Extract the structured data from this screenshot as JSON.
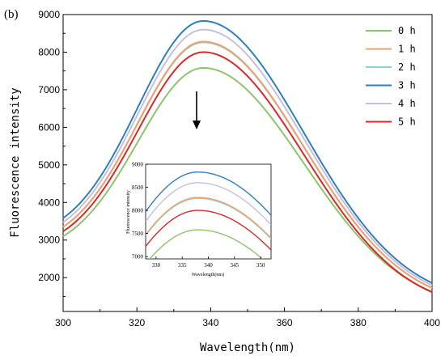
{
  "panel_label": "(b)",
  "colors": {
    "0 h": "#8cc46b",
    "1 h": "#f0a070",
    "2 h": "#8ed4c6",
    "3 h": "#2f7fc0",
    "4 h": "#c6c0e0",
    "5 h": "#d42a2a"
  },
  "chart_data": {
    "type": "line",
    "title": "",
    "xlabel": "Wavelength(nm)",
    "ylabel": "Fluorescence intensity",
    "xlim": [
      300,
      400
    ],
    "ylim": [
      1100,
      9000
    ],
    "xticks": [
      300,
      320,
      340,
      360,
      380,
      400
    ],
    "yticks": [
      2000,
      3000,
      4000,
      5000,
      6000,
      7000,
      8000,
      9000
    ],
    "legend_position": "top-right",
    "peak_wavelength": 338,
    "series": [
      {
        "name": "0 h",
        "start": 2600,
        "peak": 7580,
        "end": 1150
      },
      {
        "name": "1 h",
        "start": 2800,
        "peak": 8280,
        "end": 1200
      },
      {
        "name": "2 h",
        "start": 2800,
        "peak": 8260,
        "end": 1200
      },
      {
        "name": "3 h",
        "start": 3000,
        "peak": 8830,
        "end": 1300
      },
      {
        "name": "4 h",
        "start": 2900,
        "peak": 8600,
        "end": 1250
      },
      {
        "name": "5 h",
        "start": 2700,
        "peak": 8000,
        "end": 1100
      }
    ],
    "annotation": "downward arrow indicating decrease in intensity over time",
    "inset": {
      "xlabel": "Wavelength(nm)",
      "ylabel": "Fluorescence intensity",
      "xlim": [
        328,
        352
      ],
      "ylim": [
        6950,
        9000
      ],
      "xticks": [
        330,
        335,
        340,
        345,
        350
      ],
      "yticks": [
        7000,
        7500,
        8000,
        8500,
        9000
      ]
    }
  }
}
